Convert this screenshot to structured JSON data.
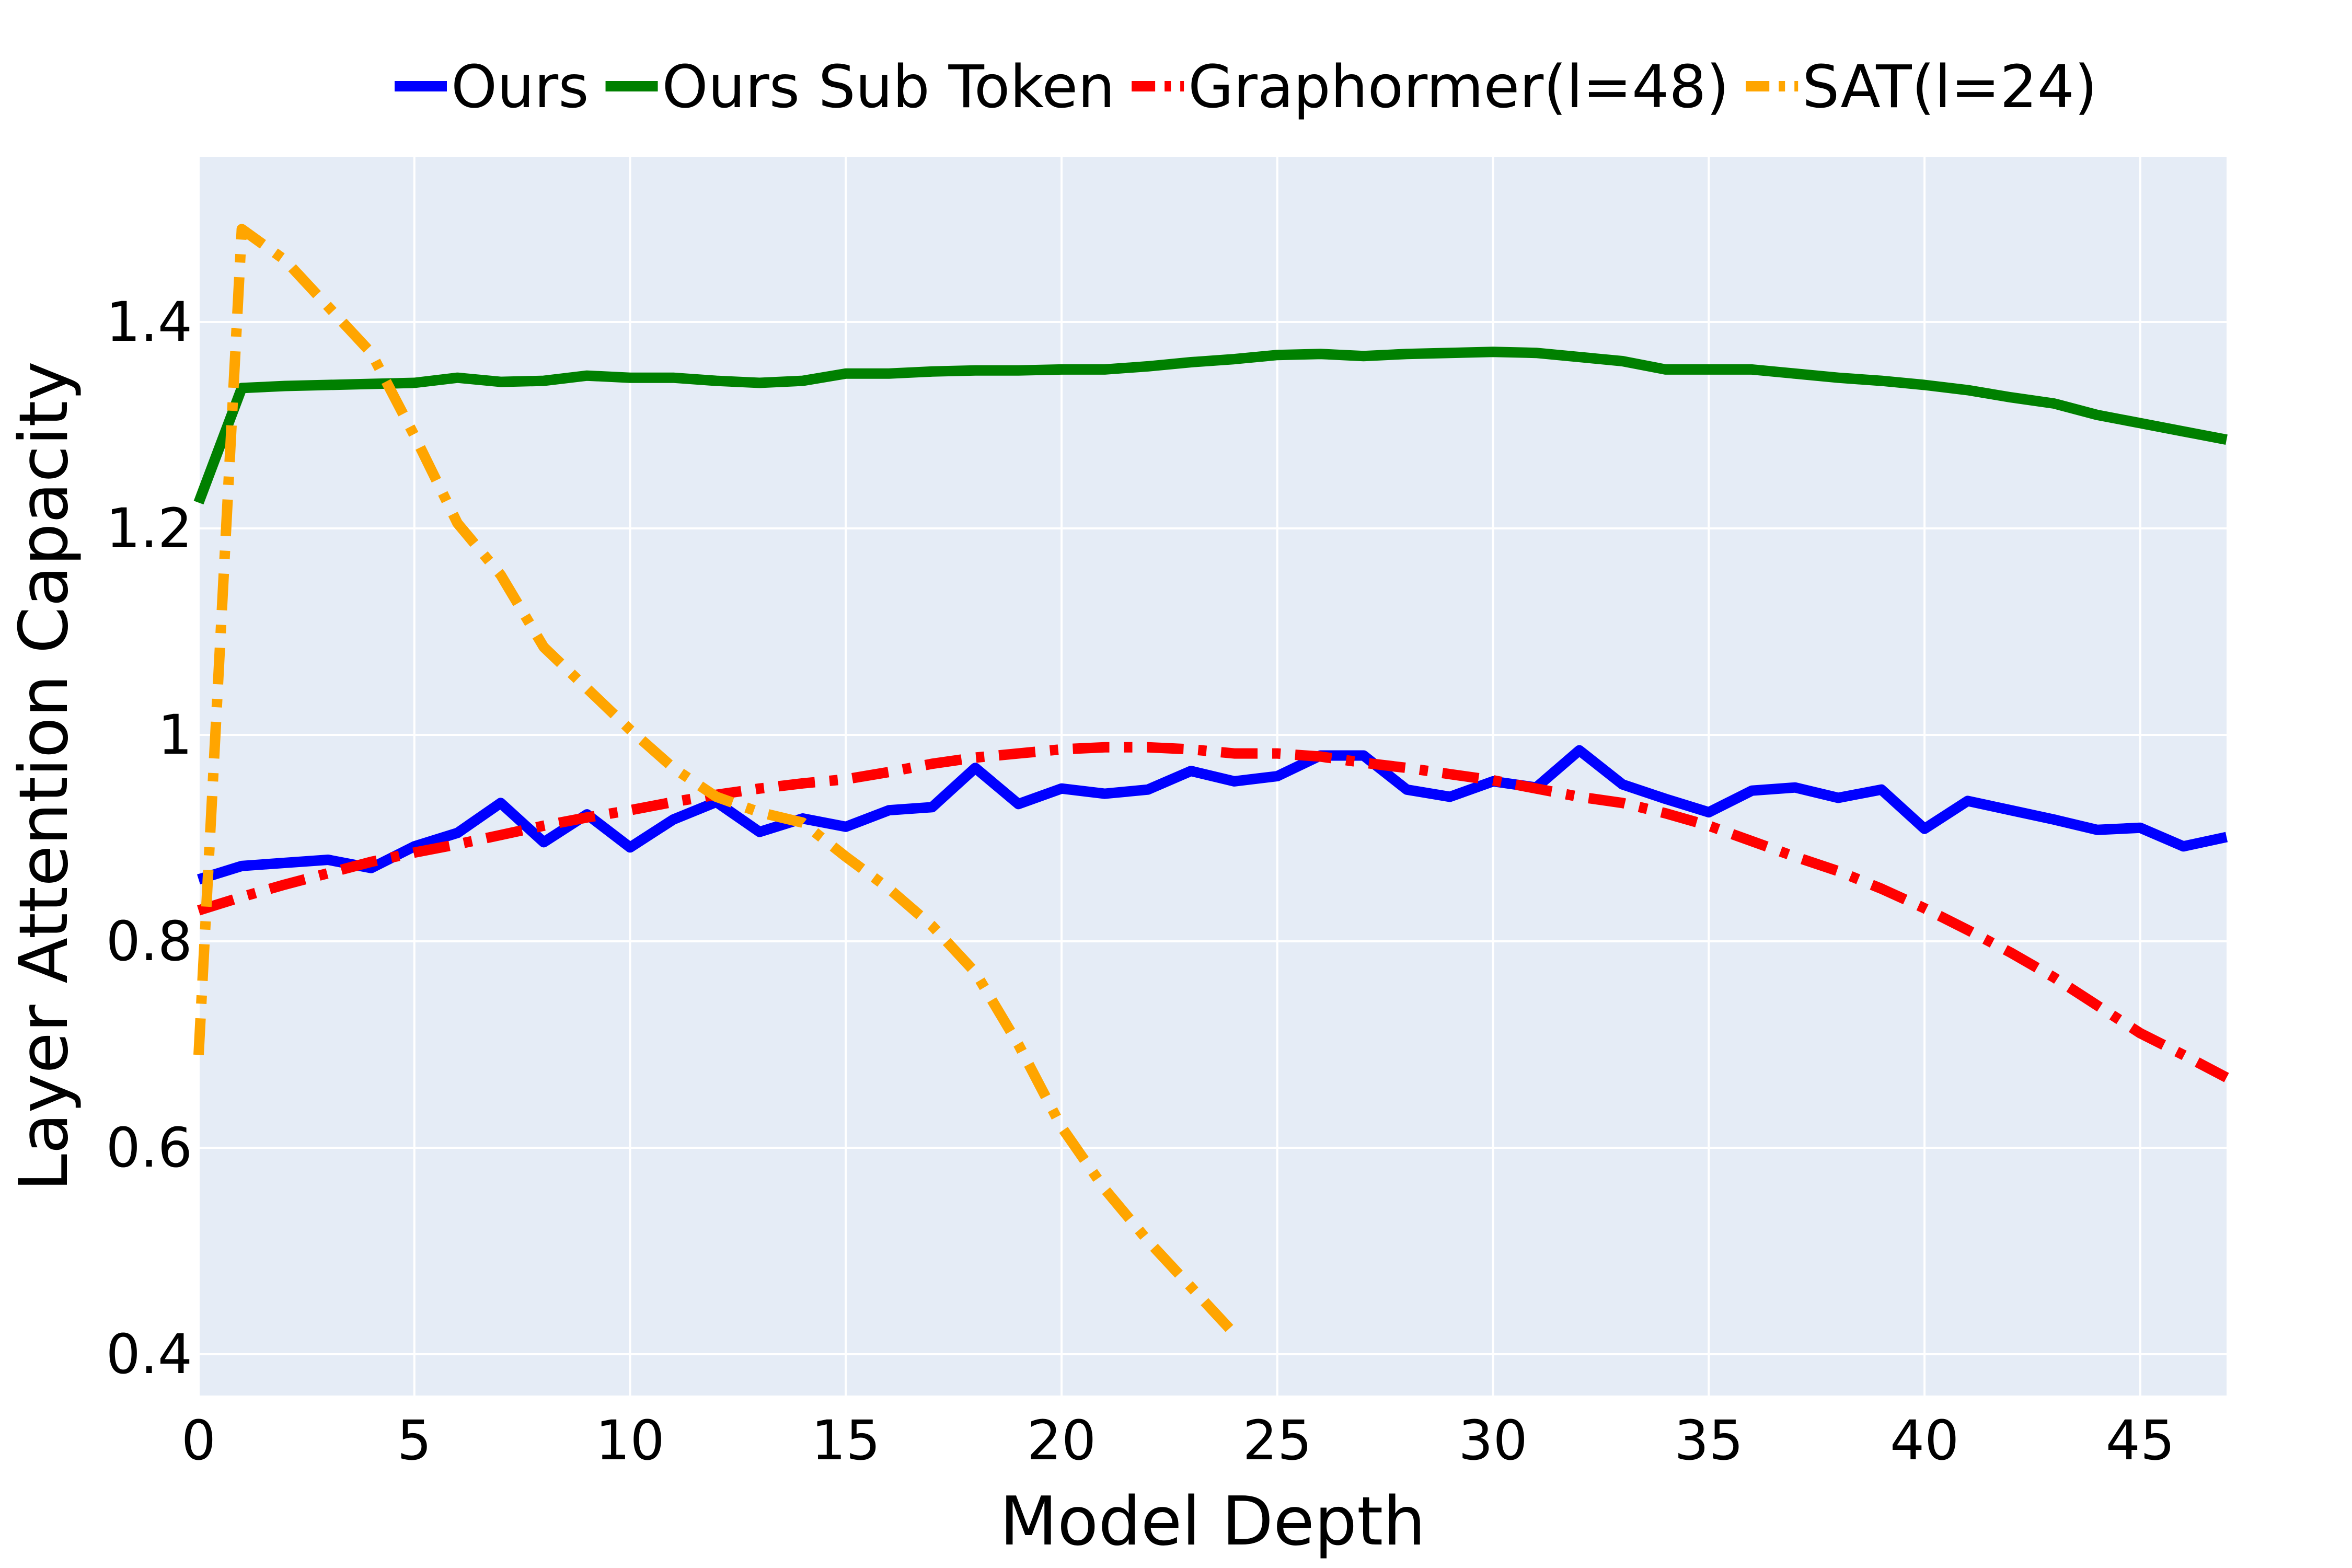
{
  "chart_data": {
    "type": "line",
    "xlabel": "Model Depth",
    "ylabel": "Layer Attention Capacity",
    "xlim": [
      0,
      47
    ],
    "ylim": [
      0.36,
      1.56
    ],
    "xticks": [
      0,
      5,
      10,
      15,
      20,
      25,
      30,
      35,
      40,
      45
    ],
    "yticks": [
      0.4,
      0.6,
      0.8,
      1,
      1.2,
      1.4
    ],
    "ytick_labels": [
      "0.4",
      "0.6",
      "0.8",
      "1",
      "1.2",
      "1.4"
    ],
    "grid": true,
    "plot_background": "#e5ecf6",
    "legend_position": "top",
    "series": [
      {
        "name": "Ours",
        "color": "#0000ff",
        "dash": "solid",
        "x": [
          0,
          1,
          2,
          3,
          4,
          5,
          6,
          7,
          8,
          9,
          10,
          11,
          12,
          13,
          14,
          15,
          16,
          17,
          18,
          19,
          20,
          21,
          22,
          23,
          24,
          25,
          26,
          27,
          28,
          29,
          30,
          31,
          32,
          33,
          34,
          35,
          36,
          37,
          38,
          39,
          40,
          41,
          42,
          43,
          44,
          45,
          46,
          47
        ],
        "values": [
          0.86,
          0.873,
          0.876,
          0.879,
          0.871,
          0.892,
          0.905,
          0.934,
          0.896,
          0.923,
          0.891,
          0.918,
          0.935,
          0.906,
          0.919,
          0.911,
          0.927,
          0.93,
          0.968,
          0.933,
          0.948,
          0.943,
          0.947,
          0.965,
          0.955,
          0.96,
          0.98,
          0.98,
          0.947,
          0.94,
          0.955,
          0.949,
          0.985,
          0.952,
          0.938,
          0.925,
          0.946,
          0.949,
          0.939,
          0.947,
          0.909,
          0.936,
          0.927,
          0.918,
          0.908,
          0.91,
          0.892,
          0.901
        ]
      },
      {
        "name": "Ours Sub Token",
        "color": "#008000",
        "dash": "solid",
        "x": [
          0,
          1,
          2,
          3,
          4,
          5,
          6,
          7,
          8,
          9,
          10,
          11,
          12,
          13,
          14,
          15,
          16,
          17,
          18,
          19,
          20,
          21,
          22,
          23,
          24,
          25,
          26,
          27,
          28,
          29,
          30,
          31,
          32,
          33,
          34,
          35,
          36,
          37,
          38,
          39,
          40,
          41,
          42,
          43,
          44,
          45,
          46,
          47
        ],
        "values": [
          1.225,
          1.336,
          1.338,
          1.339,
          1.34,
          1.341,
          1.346,
          1.342,
          1.343,
          1.348,
          1.346,
          1.346,
          1.343,
          1.341,
          1.343,
          1.35,
          1.35,
          1.352,
          1.353,
          1.353,
          1.354,
          1.354,
          1.357,
          1.361,
          1.364,
          1.368,
          1.369,
          1.367,
          1.369,
          1.37,
          1.371,
          1.37,
          1.366,
          1.362,
          1.354,
          1.354,
          1.354,
          1.35,
          1.346,
          1.343,
          1.339,
          1.334,
          1.327,
          1.321,
          1.31,
          1.302,
          1.294,
          1.286
        ]
      },
      {
        "name": "Graphormer(l=48)",
        "color": "#ff0000",
        "dash": "dashdot",
        "x": [
          0,
          1,
          2,
          3,
          4,
          5,
          6,
          7,
          8,
          9,
          10,
          11,
          12,
          13,
          14,
          15,
          16,
          17,
          18,
          19,
          20,
          21,
          22,
          23,
          24,
          25,
          26,
          27,
          28,
          29,
          30,
          31,
          32,
          33,
          34,
          35,
          36,
          37,
          38,
          39,
          40,
          41,
          42,
          43,
          44,
          45,
          46,
          47
        ],
        "values": [
          0.83,
          0.843,
          0.855,
          0.866,
          0.877,
          0.886,
          0.894,
          0.903,
          0.912,
          0.92,
          0.927,
          0.935,
          0.942,
          0.948,
          0.953,
          0.957,
          0.964,
          0.972,
          0.978,
          0.982,
          0.986,
          0.988,
          0.988,
          0.986,
          0.982,
          0.982,
          0.979,
          0.973,
          0.968,
          0.962,
          0.956,
          0.948,
          0.94,
          0.934,
          0.924,
          0.912,
          0.897,
          0.882,
          0.868,
          0.851,
          0.832,
          0.811,
          0.789,
          0.765,
          0.738,
          0.711,
          0.69,
          0.668
        ]
      },
      {
        "name": "SAT(l=24)",
        "color": "#ffa500",
        "dash": "dashdot",
        "x": [
          0,
          1,
          2,
          3,
          4,
          5,
          6,
          7,
          8,
          9,
          10,
          11,
          12,
          13,
          14,
          15,
          16,
          17,
          18,
          19,
          20,
          21,
          22,
          23,
          24
        ],
        "values": [
          0.69,
          1.49,
          1.46,
          1.415,
          1.37,
          1.29,
          1.205,
          1.155,
          1.085,
          1.045,
          1.005,
          0.968,
          0.94,
          0.925,
          0.915,
          0.882,
          0.851,
          0.815,
          0.77,
          0.7,
          0.62,
          0.56,
          0.51,
          0.465,
          0.42
        ]
      }
    ]
  }
}
